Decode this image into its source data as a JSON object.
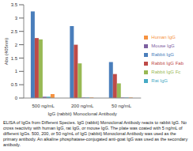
{
  "chart_data": {
    "type": "bar",
    "x_label": "IgG (rabbit) Monoclonal Antibody",
    "y_label": "Abs (405nm)",
    "caption": "ELISA of IgGs from Different Species. IgG (rabbit) Monoclonal Antibody reacts to rabbit IgG. No cross reactivity with human IgG, rat IgG, or mouse IgG. The plate was coated with 5 ng/mL of different IgGs. 500, 200, or 50 ng/mL of IgG (rabbit) Monoclonal Antibody was used as the primary antibody. An alkaline phosphatase-conjugated anti-goat IgG was used as the secondary antibody.",
    "categories": [
      "500 ng/mL",
      "200 ng/mL",
      "50 ng/mL"
    ],
    "series": [
      {
        "name": "Rabbit IgG",
        "color": "#4a7ebb",
        "values": [
          3.25,
          2.7,
          1.35
        ]
      },
      {
        "name": "Rabbit IgG Fab",
        "color": "#be4b48",
        "values": [
          2.25,
          2.0,
          0.9
        ]
      },
      {
        "name": "Rabbit IgG Fc",
        "color": "#98b954",
        "values": [
          2.2,
          1.3,
          0.55
        ]
      },
      {
        "name": "Mouse IgG",
        "color": "#7d60a0",
        "values": [
          0.05,
          0.02,
          0.02
        ]
      },
      {
        "name": "Rat IgG",
        "color": "#46aac5",
        "values": [
          0.05,
          0.02,
          0.02
        ]
      },
      {
        "name": "Human IgG",
        "color": "#f69240",
        "values": [
          0.15,
          0.02,
          0.02
        ]
      }
    ],
    "ylim": [
      0,
      3.5
    ],
    "yticks": [
      0,
      0.5,
      1,
      1.5,
      2,
      2.5,
      3,
      3.5
    ],
    "grid": false,
    "legend": "right"
  }
}
